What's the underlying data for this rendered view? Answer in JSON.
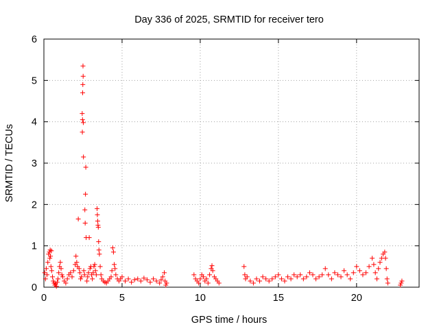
{
  "chart_data": {
    "type": "scatter",
    "title": "Day 336 of 2025, SRMTID for receiver tero",
    "xlabel": "GPS time / hours",
    "ylabel": "SRMTID / TECUs",
    "xlim": [
      0,
      24
    ],
    "ylim": [
      0,
      6
    ],
    "xticks": [
      0,
      5,
      10,
      15,
      20
    ],
    "yticks": [
      0,
      1,
      2,
      3,
      4,
      5,
      6
    ],
    "grid": true,
    "marker": "plus",
    "color": "#ff0000",
    "series": [
      {
        "name": "SRMTID",
        "points": [
          [
            0.05,
            0.35
          ],
          [
            0.1,
            0.2
          ],
          [
            0.15,
            0.45
          ],
          [
            0.2,
            0.3
          ],
          [
            0.25,
            0.6
          ],
          [
            0.3,
            0.8
          ],
          [
            0.35,
            0.85
          ],
          [
            0.38,
            0.7
          ],
          [
            0.4,
            0.9
          ],
          [
            0.42,
            0.75
          ],
          [
            0.45,
            0.5
          ],
          [
            0.48,
            0.88
          ],
          [
            0.5,
            0.4
          ],
          [
            0.55,
            0.25
          ],
          [
            0.6,
            0.15
          ],
          [
            0.65,
            0.1
          ],
          [
            0.7,
            0.05
          ],
          [
            0.75,
            0.08
          ],
          [
            0.8,
            0.02
          ],
          [
            0.85,
            0.12
          ],
          [
            0.9,
            0.2
          ],
          [
            0.95,
            0.35
          ],
          [
            1.0,
            0.5
          ],
          [
            1.05,
            0.6
          ],
          [
            1.1,
            0.45
          ],
          [
            1.15,
            0.3
          ],
          [
            1.2,
            0.25
          ],
          [
            1.3,
            0.15
          ],
          [
            1.4,
            0.1
          ],
          [
            1.5,
            0.2
          ],
          [
            1.6,
            0.3
          ],
          [
            1.7,
            0.35
          ],
          [
            1.8,
            0.25
          ],
          [
            1.9,
            0.4
          ],
          [
            2.0,
            0.55
          ],
          [
            2.05,
            0.75
          ],
          [
            2.1,
            0.6
          ],
          [
            2.15,
            0.5
          ],
          [
            2.2,
            1.65
          ],
          [
            2.25,
            0.45
          ],
          [
            2.3,
            0.35
          ],
          [
            2.35,
            0.2
          ],
          [
            2.4,
            0.25
          ],
          [
            2.45,
            4.2
          ],
          [
            2.46,
            3.75
          ],
          [
            2.47,
            4.05
          ],
          [
            2.48,
            4.7
          ],
          [
            2.49,
            4.9
          ],
          [
            2.5,
            5.35
          ],
          [
            2.51,
            5.1
          ],
          [
            2.52,
            3.98
          ],
          [
            2.53,
            3.15
          ],
          [
            2.55,
            0.4
          ],
          [
            2.6,
            0.3
          ],
          [
            2.62,
            1.87
          ],
          [
            2.64,
            1.55
          ],
          [
            2.66,
            2.25
          ],
          [
            2.68,
            2.9
          ],
          [
            2.7,
            1.2
          ],
          [
            2.75,
            0.15
          ],
          [
            2.8,
            0.25
          ],
          [
            2.85,
            0.35
          ],
          [
            2.9,
            1.2
          ],
          [
            2.95,
            0.45
          ],
          [
            3.0,
            0.5
          ],
          [
            3.05,
            0.3
          ],
          [
            3.1,
            0.2
          ],
          [
            3.15,
            0.35
          ],
          [
            3.2,
            0.5
          ],
          [
            3.25,
            0.55
          ],
          [
            3.3,
            0.4
          ],
          [
            3.35,
            0.3
          ],
          [
            3.4,
            1.9
          ],
          [
            3.42,
            1.75
          ],
          [
            3.44,
            1.6
          ],
          [
            3.46,
            1.5
          ],
          [
            3.48,
            1.45
          ],
          [
            3.5,
            1.1
          ],
          [
            3.52,
            0.9
          ],
          [
            3.55,
            0.8
          ],
          [
            3.6,
            0.5
          ],
          [
            3.65,
            0.3
          ],
          [
            3.7,
            0.2
          ],
          [
            3.8,
            0.15
          ],
          [
            3.9,
            0.12
          ],
          [
            4.0,
            0.1
          ],
          [
            4.1,
            0.15
          ],
          [
            4.2,
            0.2
          ],
          [
            4.3,
            0.25
          ],
          [
            4.35,
            0.4
          ],
          [
            4.4,
            0.95
          ],
          [
            4.45,
            0.85
          ],
          [
            4.5,
            0.55
          ],
          [
            4.55,
            0.45
          ],
          [
            4.6,
            0.3
          ],
          [
            4.7,
            0.2
          ],
          [
            4.8,
            0.15
          ],
          [
            4.9,
            0.2
          ],
          [
            5.0,
            0.25
          ],
          [
            5.2,
            0.15
          ],
          [
            5.4,
            0.2
          ],
          [
            5.6,
            0.12
          ],
          [
            5.8,
            0.18
          ],
          [
            6.0,
            0.2
          ],
          [
            6.2,
            0.15
          ],
          [
            6.4,
            0.22
          ],
          [
            6.6,
            0.18
          ],
          [
            6.8,
            0.12
          ],
          [
            7.0,
            0.2
          ],
          [
            7.2,
            0.15
          ],
          [
            7.4,
            0.1
          ],
          [
            7.5,
            0.18
          ],
          [
            7.6,
            0.25
          ],
          [
            7.7,
            0.35
          ],
          [
            7.75,
            0.15
          ],
          [
            7.8,
            0.05
          ],
          [
            7.85,
            0.1
          ],
          [
            9.6,
            0.3
          ],
          [
            9.7,
            0.2
          ],
          [
            9.8,
            0.15
          ],
          [
            9.9,
            0.1
          ],
          [
            10.0,
            0.2
          ],
          [
            10.1,
            0.3
          ],
          [
            10.2,
            0.25
          ],
          [
            10.3,
            0.15
          ],
          [
            10.4,
            0.2
          ],
          [
            10.5,
            0.1
          ],
          [
            10.6,
            0.3
          ],
          [
            10.7,
            0.45
          ],
          [
            10.75,
            0.52
          ],
          [
            10.8,
            0.4
          ],
          [
            10.9,
            0.25
          ],
          [
            11.0,
            0.2
          ],
          [
            11.1,
            0.15
          ],
          [
            11.2,
            0.1
          ],
          [
            12.8,
            0.5
          ],
          [
            12.85,
            0.3
          ],
          [
            12.9,
            0.2
          ],
          [
            13.0,
            0.25
          ],
          [
            13.2,
            0.15
          ],
          [
            13.4,
            0.1
          ],
          [
            13.6,
            0.2
          ],
          [
            13.8,
            0.15
          ],
          [
            14.0,
            0.25
          ],
          [
            14.2,
            0.2
          ],
          [
            14.4,
            0.15
          ],
          [
            14.6,
            0.2
          ],
          [
            14.8,
            0.25
          ],
          [
            15.0,
            0.3
          ],
          [
            15.2,
            0.2
          ],
          [
            15.4,
            0.15
          ],
          [
            15.6,
            0.25
          ],
          [
            15.8,
            0.2
          ],
          [
            16.0,
            0.3
          ],
          [
            16.2,
            0.25
          ],
          [
            16.4,
            0.3
          ],
          [
            16.6,
            0.2
          ],
          [
            16.8,
            0.25
          ],
          [
            17.0,
            0.35
          ],
          [
            17.2,
            0.3
          ],
          [
            17.4,
            0.2
          ],
          [
            17.6,
            0.25
          ],
          [
            17.8,
            0.3
          ],
          [
            18.0,
            0.45
          ],
          [
            18.2,
            0.3
          ],
          [
            18.4,
            0.2
          ],
          [
            18.6,
            0.35
          ],
          [
            18.8,
            0.3
          ],
          [
            19.0,
            0.25
          ],
          [
            19.2,
            0.4
          ],
          [
            19.4,
            0.3
          ],
          [
            19.6,
            0.2
          ],
          [
            19.8,
            0.35
          ],
          [
            20.0,
            0.5
          ],
          [
            20.2,
            0.4
          ],
          [
            20.4,
            0.3
          ],
          [
            20.6,
            0.35
          ],
          [
            20.8,
            0.5
          ],
          [
            21.0,
            0.7
          ],
          [
            21.1,
            0.55
          ],
          [
            21.2,
            0.35
          ],
          [
            21.3,
            0.2
          ],
          [
            21.4,
            0.45
          ],
          [
            21.5,
            0.6
          ],
          [
            21.6,
            0.7
          ],
          [
            21.7,
            0.8
          ],
          [
            21.8,
            0.85
          ],
          [
            21.85,
            0.7
          ],
          [
            21.9,
            0.45
          ],
          [
            21.95,
            0.2
          ],
          [
            22.0,
            0.1
          ],
          [
            22.8,
            0.05
          ],
          [
            22.85,
            0.1
          ],
          [
            22.9,
            0.15
          ]
        ]
      }
    ]
  }
}
